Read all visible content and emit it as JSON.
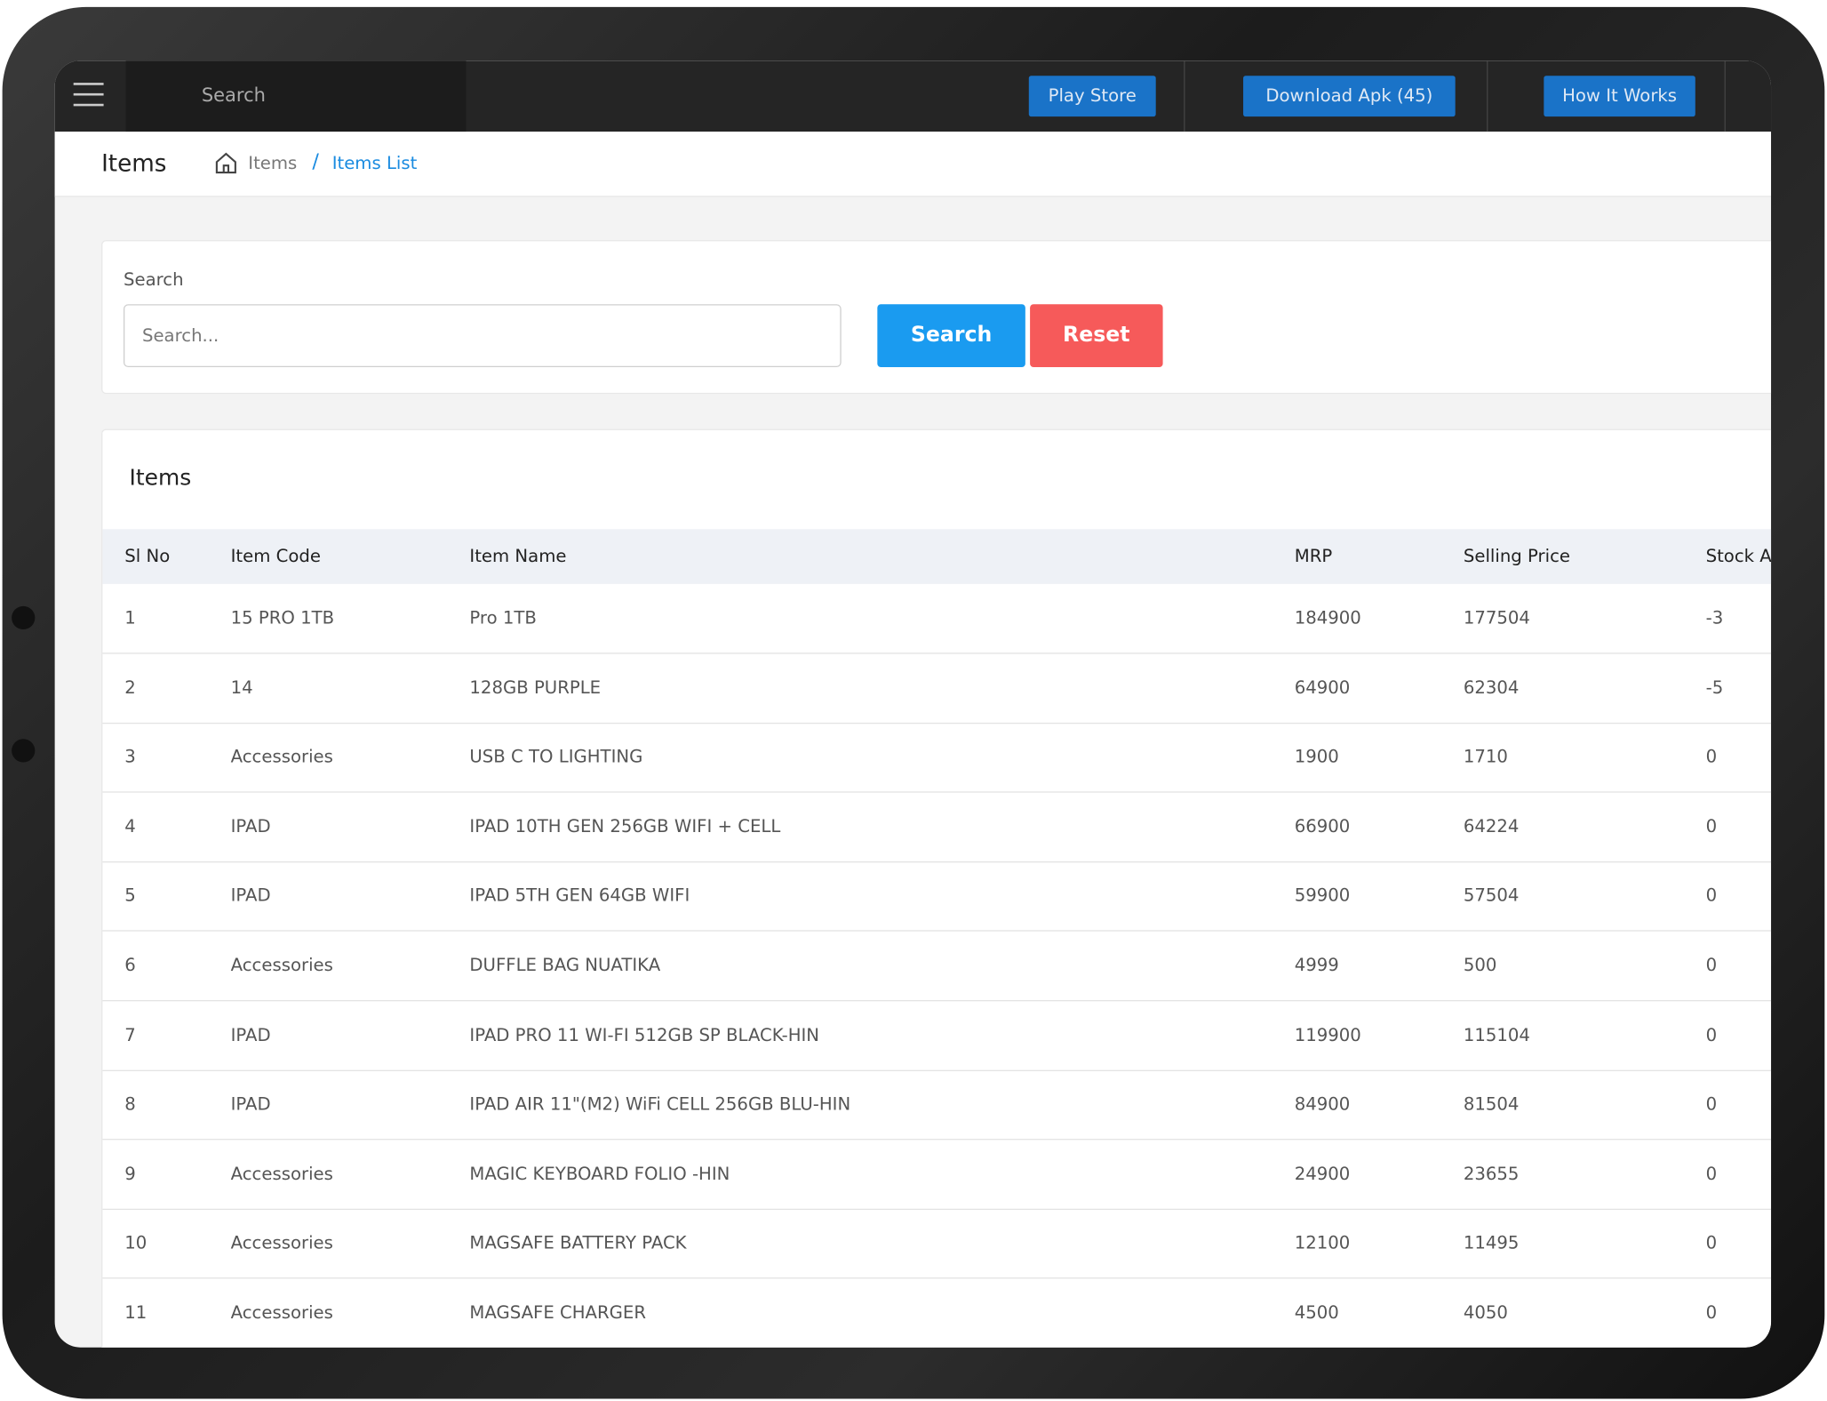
{
  "nav": {
    "search_placeholder": "Search",
    "buttons": [
      "Play Store",
      "Download Apk (45)",
      "How It Works"
    ]
  },
  "breadcrumb": {
    "title": "Items",
    "items": [
      "Items",
      "Items List"
    ]
  },
  "search_card": {
    "label": "Search",
    "placeholder": "Search...",
    "search_button": "Search",
    "reset_button": "Reset"
  },
  "table": {
    "title": "Items",
    "headers": [
      "Sl No",
      "Item Code",
      "Item Name",
      "MRP",
      "Selling Price",
      "Stock A"
    ],
    "rows": [
      [
        "1",
        "15 PRO 1TB",
        "Pro 1TB",
        "184900",
        "177504",
        "-3"
      ],
      [
        "2",
        "14",
        "128GB PURPLE",
        "64900",
        "62304",
        "-5"
      ],
      [
        "3",
        "Accessories",
        "USB C TO LIGHTING",
        "1900",
        "1710",
        "0"
      ],
      [
        "4",
        "IPAD",
        "IPAD 10TH GEN 256GB WIFI + CELL",
        "66900",
        "64224",
        "0"
      ],
      [
        "5",
        "IPAD",
        "IPAD 5TH GEN 64GB WIFI",
        "59900",
        "57504",
        "0"
      ],
      [
        "6",
        "Accessories",
        "DUFFLE BAG NUATIKA",
        "4999",
        "500",
        "0"
      ],
      [
        "7",
        "IPAD",
        "IPAD PRO 11 WI-FI 512GB SP BLACK-HIN",
        "119900",
        "115104",
        "0"
      ],
      [
        "8",
        "IPAD",
        "IPAD AIR 11\"(M2) WiFi CELL 256GB BLU-HIN",
        "84900",
        "81504",
        "0"
      ],
      [
        "9",
        "Accessories",
        "MAGIC KEYBOARD FOLIO -HIN",
        "24900",
        "23655",
        "0"
      ],
      [
        "10",
        "Accessories",
        "MAGSAFE BATTERY PACK",
        "12100",
        "11495",
        "0"
      ],
      [
        "11",
        "Accessories",
        "MAGSAFE CHARGER",
        "4500",
        "4050",
        "0"
      ]
    ]
  }
}
